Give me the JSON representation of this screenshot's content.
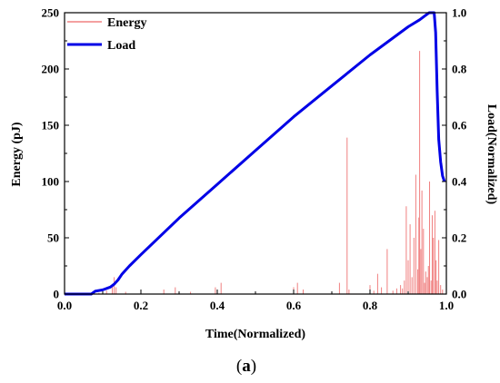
{
  "chart_data": {
    "type": "line",
    "xlabel": "Time(Normalized)",
    "ylabel_left": "Energy (pJ)",
    "ylabel_right": "Load(Normalized)",
    "caption_open": "(",
    "caption_letter": "a",
    "caption_close": ")",
    "xlim": [
      0.0,
      1.0
    ],
    "ylim_left": [
      0,
      250
    ],
    "ylim_right": [
      0.0,
      1.0
    ],
    "x_ticks": [
      0.0,
      0.2,
      0.4,
      0.6,
      0.8,
      1.0
    ],
    "x_tick_labels": [
      "0.0",
      "0.2",
      "0.4",
      "0.6",
      "0.8",
      "1.0"
    ],
    "y_left_ticks": [
      0,
      50,
      100,
      150,
      200,
      250
    ],
    "y_left_tick_labels": [
      "0",
      "50",
      "100",
      "150",
      "200",
      "250"
    ],
    "y_right_ticks": [
      0.0,
      0.2,
      0.4,
      0.6,
      0.8,
      1.0
    ],
    "y_right_tick_labels": [
      "0.0",
      "0.2",
      "0.4",
      "0.6",
      "0.8",
      "1.0"
    ],
    "legend_position": "top-left",
    "colors": {
      "energy": "#f08080",
      "load": "#0000e6"
    },
    "series": [
      {
        "name": "Energy",
        "kind": "spikes",
        "axis": "left",
        "x": [
          0.09,
          0.11,
          0.125,
          0.13,
          0.135,
          0.16,
          0.26,
          0.29,
          0.33,
          0.395,
          0.41,
          0.5,
          0.6,
          0.61,
          0.625,
          0.72,
          0.74,
          0.745,
          0.8,
          0.81,
          0.82,
          0.83,
          0.845,
          0.86,
          0.87,
          0.88,
          0.885,
          0.89,
          0.895,
          0.9,
          0.905,
          0.91,
          0.915,
          0.92,
          0.925,
          0.928,
          0.93,
          0.933,
          0.936,
          0.94,
          0.943,
          0.946,
          0.95,
          0.953,
          0.956,
          0.96,
          0.963,
          0.966,
          0.97,
          0.973,
          0.976,
          0.98,
          0.985,
          0.99
        ],
        "values": [
          1,
          3,
          8,
          15,
          6,
          2,
          4,
          6,
          2,
          6,
          10,
          2,
          6,
          10,
          4,
          10,
          139,
          4,
          8,
          3,
          18,
          6,
          40,
          3,
          5,
          8,
          5,
          12,
          78,
          30,
          62,
          15,
          50,
          106,
          22,
          68,
          216,
          40,
          92,
          58,
          10,
          20,
          15,
          25,
          100,
          12,
          70,
          50,
          74,
          30,
          12,
          48,
          8,
          4
        ]
      },
      {
        "name": "Load",
        "kind": "line",
        "axis": "right",
        "x": [
          0.0,
          0.07,
          0.08,
          0.1,
          0.12,
          0.13,
          0.14,
          0.15,
          0.17,
          0.2,
          0.3,
          0.4,
          0.5,
          0.6,
          0.7,
          0.8,
          0.85,
          0.9,
          0.93,
          0.945,
          0.955,
          0.962,
          0.968,
          0.972,
          0.976,
          0.98,
          0.985,
          0.99,
          0.995
        ],
        "values": [
          0.0,
          0.0,
          0.01,
          0.015,
          0.025,
          0.035,
          0.05,
          0.07,
          0.1,
          0.14,
          0.27,
          0.39,
          0.51,
          0.63,
          0.74,
          0.85,
          0.9,
          0.95,
          0.975,
          0.99,
          1.0,
          1.0,
          1.0,
          0.93,
          0.72,
          0.55,
          0.47,
          0.42,
          0.4
        ]
      }
    ]
  }
}
